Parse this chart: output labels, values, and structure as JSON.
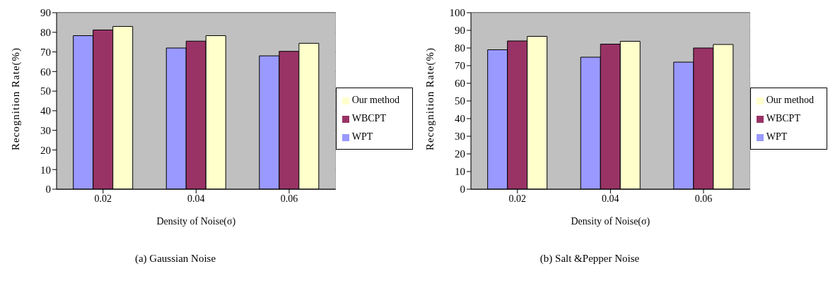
{
  "chart_data": [
    {
      "type": "bar",
      "xlabel": "Density of Noise(σ)",
      "ylabel": "Recognition Rate(%)",
      "categories": [
        "0.02",
        "0.04",
        "0.06"
      ],
      "series": [
        {
          "name": "WPT",
          "color": "#9999ff",
          "values": [
            78.3,
            72,
            68
          ]
        },
        {
          "name": "WBCPT",
          "color": "#993366",
          "values": [
            81.2,
            75.5,
            70.3
          ]
        },
        {
          "name": "Our method",
          "color": "#ffffcc",
          "values": [
            83,
            78.3,
            74.4
          ]
        }
      ],
      "ylim": [
        0,
        90
      ],
      "yticks": [
        0,
        10,
        20,
        30,
        40,
        50,
        60,
        70,
        80,
        90
      ],
      "grid": "y",
      "legend": "right",
      "annotations": [
        "(a)  Gaussian Noise"
      ]
    },
    {
      "type": "bar",
      "xlabel": "Density of Noise(σ)",
      "ylabel": "Recognition Rate(%)",
      "categories": [
        "0.02",
        "0.04",
        "0.06"
      ],
      "series": [
        {
          "name": "WPT",
          "color": "#9999ff",
          "values": [
            79,
            74.8,
            72
          ]
        },
        {
          "name": "WBCPT",
          "color": "#993366",
          "values": [
            84,
            82.2,
            80
          ]
        },
        {
          "name": "Our method",
          "color": "#ffffcc",
          "values": [
            86.6,
            83.8,
            82
          ]
        }
      ],
      "ylim": [
        0,
        100
      ],
      "yticks": [
        0,
        10,
        20,
        30,
        40,
        50,
        60,
        70,
        80,
        90,
        100
      ],
      "grid": "y",
      "legend": "right",
      "annotations": [
        "(b) Salt &Pepper Noise"
      ]
    }
  ]
}
